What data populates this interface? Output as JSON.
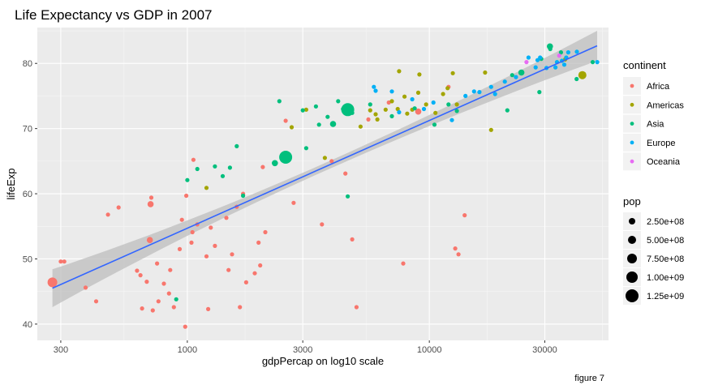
{
  "chart_data": {
    "type": "scatter",
    "title": "Life Expectancy vs GDP in 2007",
    "xlabel": "gdpPercap on log10 scale",
    "ylabel": "lifeExp",
    "caption": "figure 7",
    "x_scale": "log10",
    "xlim": [
      240,
      55000
    ],
    "ylim": [
      37.5,
      85.5
    ],
    "x_ticks": [
      300,
      1000,
      3000,
      10000,
      30000
    ],
    "x_tick_labels": [
      "300",
      "1000",
      "3000",
      "10000",
      "30000"
    ],
    "y_ticks": [
      40,
      50,
      60,
      70,
      80
    ],
    "y_tick_labels": [
      "40",
      "50",
      "60",
      "70",
      "80"
    ],
    "grid": true,
    "legend_color": {
      "title": "continent",
      "position": "right",
      "items": [
        {
          "label": "Africa",
          "color": "#F8766D"
        },
        {
          "label": "Americas",
          "color": "#A3A500"
        },
        {
          "label": "Asia",
          "color": "#00BF7D"
        },
        {
          "label": "Europe",
          "color": "#00B0F6"
        },
        {
          "label": "Oceania",
          "color": "#E76BF3"
        }
      ]
    },
    "legend_size": {
      "title": "pop",
      "position": "right",
      "items": [
        {
          "label": "2.50e+08",
          "value": 250000000
        },
        {
          "label": "5.00e+08",
          "value": 500000000
        },
        {
          "label": "7.50e+08",
          "value": 750000000
        },
        {
          "label": "1.00e+09",
          "value": 1000000000
        },
        {
          "label": "1.25e+09",
          "value": 1250000000
        }
      ]
    },
    "smooth": {
      "method": "lm",
      "color": "#3366FF",
      "band_color": "#BEBEBE",
      "x": [
        277,
        49357
      ],
      "y": [
        45.5,
        82.7
      ],
      "se_ends": [
        2.9,
        2.3
      ],
      "se_mid": 0.6
    },
    "series": [
      {
        "name": "Africa",
        "points": [
          [
            277,
            46.4,
            4
          ],
          [
            300,
            49.6,
            1
          ],
          [
            310,
            49.6,
            1
          ],
          [
            380,
            45.6,
            1
          ],
          [
            420,
            43.5,
            1
          ],
          [
            470,
            56.8,
            1
          ],
          [
            520,
            57.9,
            1
          ],
          [
            620,
            48.2,
            1
          ],
          [
            640,
            47.5,
            1
          ],
          [
            650,
            42.4,
            1
          ],
          [
            680,
            46.5,
            1
          ],
          [
            700,
            52.9,
            2
          ],
          [
            705,
            58.4,
            2
          ],
          [
            710,
            59.4,
            1
          ],
          [
            720,
            42.1,
            1
          ],
          [
            750,
            49.3,
            1
          ],
          [
            760,
            43.5,
            1
          ],
          [
            800,
            46.2,
            1
          ],
          [
            840,
            44.7,
            1
          ],
          [
            850,
            48.3,
            1
          ],
          [
            880,
            42.6,
            1
          ],
          [
            930,
            51.5,
            1
          ],
          [
            950,
            56.0,
            1
          ],
          [
            980,
            39.6,
            1
          ],
          [
            990,
            59.7,
            1
          ],
          [
            1040,
            52.5,
            1
          ],
          [
            1050,
            54.1,
            1
          ],
          [
            1060,
            65.2,
            1
          ],
          [
            1100,
            55.3,
            1
          ],
          [
            1200,
            50.4,
            1
          ],
          [
            1220,
            42.3,
            1
          ],
          [
            1250,
            54.8,
            1
          ],
          [
            1300,
            52.0,
            1
          ],
          [
            1450,
            56.3,
            1
          ],
          [
            1480,
            48.3,
            1
          ],
          [
            1530,
            50.7,
            1
          ],
          [
            1600,
            58.0,
            1
          ],
          [
            1650,
            42.6,
            1
          ],
          [
            1700,
            60.0,
            1
          ],
          [
            1750,
            46.4,
            1
          ],
          [
            1900,
            47.8,
            1
          ],
          [
            1970,
            52.5,
            1
          ],
          [
            2000,
            49.0,
            1
          ],
          [
            2050,
            64.1,
            1
          ],
          [
            2100,
            54.1,
            1
          ],
          [
            2550,
            71.2,
            1
          ],
          [
            2750,
            58.6,
            1
          ],
          [
            3600,
            55.3,
            1
          ],
          [
            3950,
            65.0,
            1
          ],
          [
            4500,
            63.1,
            1
          ],
          [
            4800,
            53.0,
            1
          ],
          [
            5000,
            42.6,
            1
          ],
          [
            5600,
            71.4,
            1
          ],
          [
            6800,
            74.0,
            1
          ],
          [
            7800,
            49.3,
            1
          ],
          [
            9000,
            72.6,
            2
          ],
          [
            12000,
            76.4,
            1
          ],
          [
            12800,
            51.6,
            1
          ],
          [
            13200,
            50.7,
            1
          ],
          [
            14000,
            56.7,
            1
          ]
        ]
      },
      {
        "name": "Americas",
        "points": [
          [
            1200,
            60.9,
            1
          ],
          [
            2700,
            70.2,
            1
          ],
          [
            3100,
            72.9,
            1
          ],
          [
            3700,
            65.5,
            1
          ],
          [
            5200,
            70.3,
            1
          ],
          [
            5700,
            72.8,
            1
          ],
          [
            6000,
            72.2,
            1
          ],
          [
            6100,
            71.4,
            1
          ],
          [
            6600,
            72.9,
            1
          ],
          [
            7000,
            74.2,
            1
          ],
          [
            7400,
            73.0,
            1
          ],
          [
            7500,
            78.8,
            1
          ],
          [
            7900,
            74.9,
            1
          ],
          [
            8100,
            72.3,
            1
          ],
          [
            8500,
            72.9,
            1
          ],
          [
            9000,
            75.5,
            1
          ],
          [
            9100,
            78.3,
            1
          ],
          [
            9700,
            73.7,
            1
          ],
          [
            10600,
            72.4,
            1
          ],
          [
            11400,
            75.3,
            1
          ],
          [
            11900,
            76.2,
            1
          ],
          [
            12500,
            78.5,
            1
          ],
          [
            13000,
            73.7,
            1
          ],
          [
            17000,
            78.6,
            1
          ],
          [
            18000,
            69.8,
            1
          ],
          [
            36400,
            80.6,
            1
          ],
          [
            42900,
            78.2,
            3
          ]
        ]
      },
      {
        "name": "Asia",
        "points": [
          [
            900,
            43.8,
            1
          ],
          [
            1000,
            62.1,
            1
          ],
          [
            1100,
            63.8,
            1
          ],
          [
            1300,
            64.2,
            1
          ],
          [
            1400,
            62.7,
            1
          ],
          [
            1500,
            64.0,
            1
          ],
          [
            1600,
            67.3,
            1
          ],
          [
            1700,
            59.7,
            1
          ],
          [
            2300,
            64.7,
            2
          ],
          [
            2400,
            74.2,
            1
          ],
          [
            2550,
            65.6,
            5
          ],
          [
            3000,
            72.8,
            1
          ],
          [
            3100,
            67.0,
            1
          ],
          [
            3400,
            73.4,
            1
          ],
          [
            3500,
            70.6,
            1
          ],
          [
            3800,
            71.8,
            1
          ],
          [
            4000,
            70.7,
            2
          ],
          [
            4200,
            74.2,
            1
          ],
          [
            4400,
            73.0,
            1
          ],
          [
            4600,
            72.9,
            5
          ],
          [
            4600,
            59.6,
            1
          ],
          [
            4800,
            72.4,
            1
          ],
          [
            5700,
            73.7,
            1
          ],
          [
            7000,
            71.9,
            1
          ],
          [
            8700,
            73.1,
            1
          ],
          [
            10500,
            70.6,
            1
          ],
          [
            12000,
            73.7,
            1
          ],
          [
            13000,
            72.7,
            1
          ],
          [
            21000,
            72.8,
            1
          ],
          [
            22000,
            78.2,
            1
          ],
          [
            24000,
            78.6,
            2
          ],
          [
            28500,
            75.6,
            1
          ],
          [
            29000,
            80.7,
            1
          ],
          [
            31500,
            82.6,
            2
          ],
          [
            31600,
            82.2,
            1
          ],
          [
            35000,
            81.7,
            1
          ],
          [
            40600,
            77.6,
            1
          ],
          [
            47300,
            80.2,
            1
          ]
        ]
      },
      {
        "name": "Europe",
        "points": [
          [
            5900,
            76.4,
            1
          ],
          [
            6000,
            75.8,
            1
          ],
          [
            7000,
            75.7,
            1
          ],
          [
            7500,
            72.5,
            1
          ],
          [
            8500,
            74.5,
            1
          ],
          [
            9500,
            73.0,
            1
          ],
          [
            10400,
            74.0,
            1
          ],
          [
            12400,
            71.3,
            1
          ],
          [
            14100,
            75.0,
            1
          ],
          [
            15300,
            75.7,
            1
          ],
          [
            16100,
            75.6,
            1
          ],
          [
            18000,
            76.4,
            1
          ],
          [
            18700,
            75.3,
            1
          ],
          [
            20500,
            77.2,
            1
          ],
          [
            22800,
            77.9,
            1
          ],
          [
            25700,
            80.9,
            1
          ],
          [
            27500,
            79.4,
            1
          ],
          [
            28000,
            80.5,
            1
          ],
          [
            28700,
            80.9,
            1
          ],
          [
            30500,
            79.3,
            1
          ],
          [
            33200,
            79.4,
            1
          ],
          [
            33700,
            80.2,
            1
          ],
          [
            35300,
            80.4,
            1
          ],
          [
            36100,
            79.8,
            1
          ],
          [
            36800,
            80.9,
            1
          ],
          [
            37500,
            81.7,
            1
          ],
          [
            40700,
            81.8,
            1
          ],
          [
            49400,
            80.2,
            1
          ]
        ]
      },
      {
        "name": "Oceania",
        "points": [
          [
            25200,
            80.2,
            1
          ],
          [
            34400,
            81.2,
            1
          ]
        ]
      }
    ]
  }
}
